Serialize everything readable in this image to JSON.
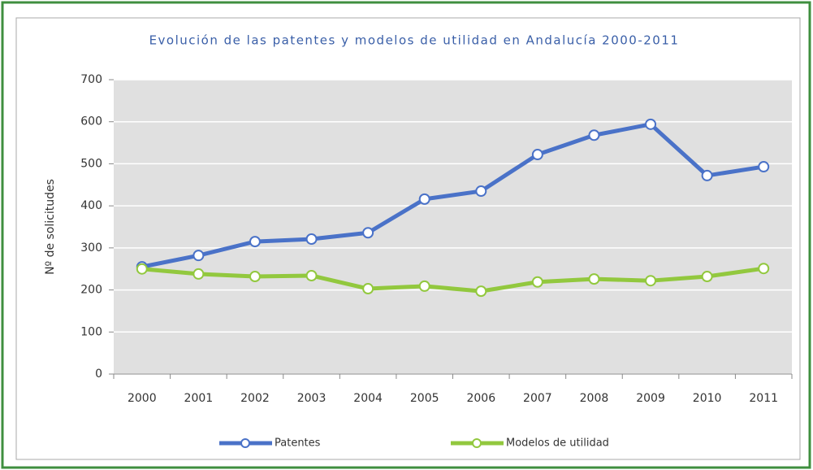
{
  "chart_data": {
    "type": "line",
    "title": "Evolución de las patentes y modelos de utilidad en Andalucía 2000-2011",
    "y_label": "Nº de solicitudes",
    "categories": [
      "2000",
      "2001",
      "2002",
      "2003",
      "2004",
      "2005",
      "2006",
      "2007",
      "2008",
      "2009",
      "2010",
      "2011"
    ],
    "series": [
      {
        "name": "Patentes",
        "color": "#4a72c8",
        "values": [
          255,
          282,
          315,
          321,
          336,
          416,
          435,
          522,
          568,
          594,
          472,
          493
        ]
      },
      {
        "name": "Modelos de utilidad",
        "color": "#92c83e",
        "values": [
          250,
          238,
          232,
          234,
          203,
          209,
          197,
          219,
          226,
          222,
          232,
          251
        ]
      }
    ],
    "ylim": [
      0,
      700
    ],
    "yticks": [
      0,
      100,
      200,
      300,
      400,
      500,
      600,
      700
    ],
    "grid": true,
    "legend": "bottom"
  }
}
